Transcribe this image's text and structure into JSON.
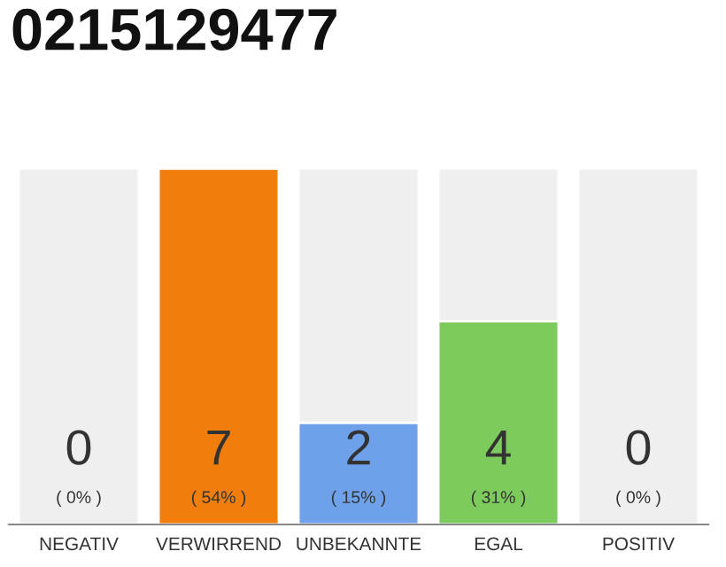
{
  "chart_data": {
    "type": "bar",
    "title": "0215129477",
    "categories": [
      "NEGATIV",
      "VERWIRREND",
      "UNBEKANNTE",
      "EGAL",
      "POSITIV"
    ],
    "stacked": true,
    "series": [
      {
        "colors": [
          "#efefef",
          "#f07d0c",
          "#6fa1ea",
          "#7dcb5c",
          "#efefef"
        ],
        "values": [
          0,
          7,
          2,
          4,
          0
        ],
        "value_labels": [
          "0\n( 0% )",
          "7\n( 54% )",
          "2\n( 15% )",
          "4\n( 31% )",
          "0\n( 0% )"
        ]
      },
      {
        "color": "#efefef",
        "values": [
          7,
          0,
          5,
          3,
          7
        ]
      }
    ]
  }
}
